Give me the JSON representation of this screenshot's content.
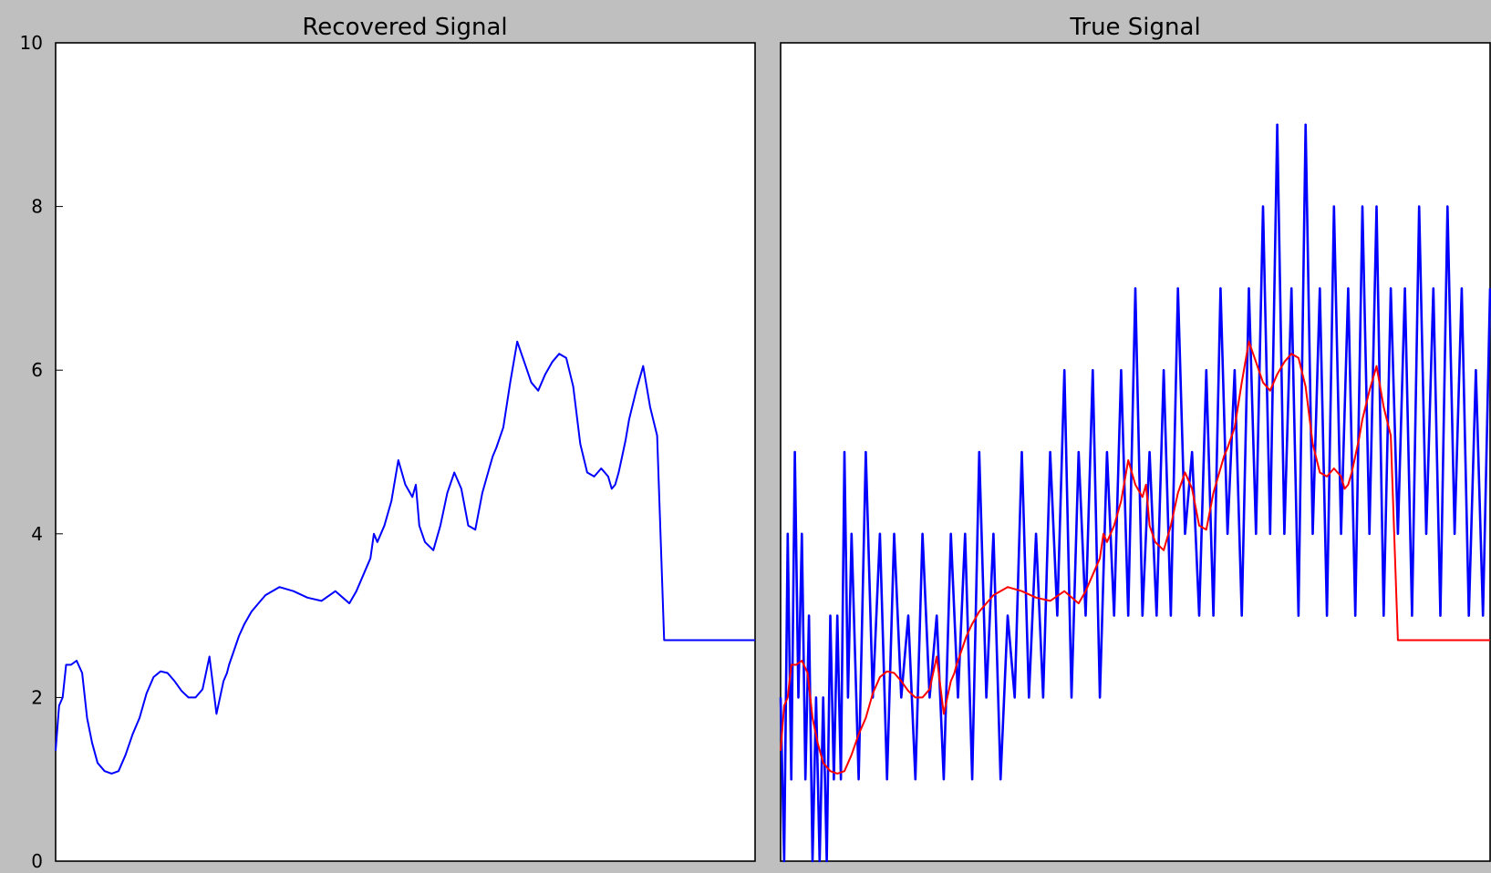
{
  "chart_data": [
    {
      "type": "line",
      "title": "Recovered Signal",
      "ylim": [
        0,
        10
      ],
      "yticks": [
        "0",
        "2",
        "4",
        "6",
        "8",
        "10"
      ],
      "xlim": [
        0,
        1000
      ],
      "xticks": [],
      "grid": false,
      "series": [
        {
          "color": "#0000ff",
          "x": [
            0,
            5,
            10,
            15,
            22,
            30,
            38,
            45,
            52,
            60,
            70,
            80,
            90,
            100,
            110,
            120,
            130,
            140,
            150,
            160,
            170,
            180,
            190,
            200,
            210,
            220,
            230,
            240,
            245,
            248,
            252,
            256,
            262,
            270,
            280,
            290,
            300,
            320,
            340,
            360,
            380,
            400,
            420,
            430,
            440,
            450,
            455,
            460,
            470,
            480,
            490,
            500,
            510,
            515,
            520,
            528,
            540,
            550,
            560,
            570,
            580,
            590,
            600,
            610,
            620,
            625,
            630,
            640,
            650,
            660,
            670,
            680,
            690,
            700,
            710,
            720,
            730,
            740,
            750,
            760,
            770,
            780,
            790,
            795,
            800,
            805,
            810,
            815,
            820,
            830,
            840,
            850,
            860,
            870,
            880,
            890,
            900,
            905,
            910,
            920,
            930,
            940,
            950,
            960,
            970,
            980,
            990,
            1000
          ],
          "y": [
            1.35,
            1.9,
            2.0,
            2.4,
            2.4,
            2.45,
            2.3,
            1.75,
            1.45,
            1.2,
            1.1,
            1.07,
            1.1,
            1.3,
            1.55,
            1.75,
            2.05,
            2.25,
            2.32,
            2.3,
            2.2,
            2.08,
            2.0,
            2.0,
            2.1,
            2.5,
            1.8,
            2.2,
            2.3,
            2.4,
            2.5,
            2.6,
            2.75,
            2.9,
            3.05,
            3.15,
            3.25,
            3.35,
            3.3,
            3.22,
            3.18,
            3.3,
            3.15,
            3.3,
            3.5,
            3.7,
            4.0,
            3.9,
            4.1,
            4.4,
            4.9,
            4.6,
            4.45,
            4.6,
            4.1,
            3.9,
            3.8,
            4.1,
            4.5,
            4.75,
            4.55,
            4.1,
            4.05,
            4.5,
            4.8,
            4.95,
            5.05,
            5.3,
            5.85,
            6.35,
            6.1,
            5.85,
            5.75,
            5.95,
            6.1,
            6.2,
            6.15,
            5.8,
            5.1,
            4.75,
            4.7,
            4.8,
            4.7,
            4.55,
            4.6,
            4.75,
            4.95,
            5.15,
            5.4,
            5.75,
            6.05,
            5.55,
            5.2,
            2.7,
            2.7,
            2.7,
            2.7,
            2.7,
            2.7,
            2.7,
            2.7,
            2.7,
            2.7,
            2.7,
            2.7,
            2.7,
            2.7,
            2.7
          ]
        }
      ]
    },
    {
      "type": "line",
      "title": "True Signal",
      "ylim": [
        0,
        10
      ],
      "yticks": [],
      "xlim": [
        0,
        1000
      ],
      "xticks": [],
      "grid": false,
      "series": [
        {
          "color": "#0000ff",
          "x": [
            0,
            5,
            10,
            15,
            20,
            25,
            30,
            35,
            40,
            45,
            50,
            55,
            60,
            65,
            70,
            75,
            80,
            85,
            90,
            95,
            100,
            110,
            120,
            130,
            140,
            150,
            160,
            170,
            180,
            190,
            200,
            210,
            220,
            230,
            240,
            250,
            260,
            270,
            280,
            290,
            300,
            310,
            320,
            330,
            340,
            350,
            360,
            370,
            380,
            390,
            400,
            410,
            420,
            430,
            440,
            450,
            460,
            470,
            480,
            490,
            500,
            510,
            520,
            530,
            540,
            550,
            560,
            570,
            580,
            590,
            600,
            610,
            620,
            630,
            640,
            650,
            660,
            670,
            680,
            690,
            700,
            710,
            720,
            730,
            740,
            750,
            760,
            770,
            780,
            790,
            800,
            810,
            820,
            830,
            840,
            850,
            860,
            870,
            880,
            890,
            900,
            910,
            920,
            930,
            940,
            950,
            960,
            970,
            980,
            990,
            1000
          ],
          "y": [
            2,
            0,
            4,
            1,
            5,
            2,
            4,
            1,
            3,
            0,
            2,
            0,
            2,
            0,
            3,
            1,
            3,
            1,
            5,
            2,
            4,
            1,
            5,
            2,
            4,
            1,
            4,
            2,
            3,
            1,
            4,
            2,
            3,
            1,
            4,
            2,
            4,
            1,
            5,
            2,
            4,
            1,
            3,
            2,
            5,
            2,
            4,
            2,
            5,
            3,
            6,
            2,
            5,
            3,
            6,
            2,
            5,
            3,
            6,
            3,
            7,
            3,
            5,
            3,
            6,
            3,
            7,
            4,
            5,
            3,
            6,
            3,
            7,
            4,
            6,
            3,
            7,
            4,
            8,
            4,
            9,
            4,
            7,
            3,
            9,
            4,
            7,
            3,
            8,
            4,
            7,
            3,
            8,
            4,
            8,
            3,
            7,
            4,
            7,
            3,
            8,
            4,
            7,
            3,
            8,
            4,
            7,
            3,
            6,
            3,
            7
          ]
        },
        {
          "color": "#ff0000",
          "x": [
            0,
            5,
            10,
            15,
            22,
            30,
            38,
            45,
            52,
            60,
            70,
            80,
            90,
            100,
            110,
            120,
            130,
            140,
            150,
            160,
            170,
            180,
            190,
            200,
            210,
            220,
            230,
            240,
            245,
            248,
            252,
            256,
            262,
            270,
            280,
            290,
            300,
            320,
            340,
            360,
            380,
            400,
            420,
            430,
            440,
            450,
            455,
            460,
            470,
            480,
            490,
            500,
            510,
            515,
            520,
            528,
            540,
            550,
            560,
            570,
            580,
            590,
            600,
            610,
            620,
            625,
            630,
            640,
            650,
            660,
            670,
            680,
            690,
            700,
            710,
            720,
            730,
            740,
            750,
            760,
            770,
            780,
            790,
            795,
            800,
            805,
            810,
            815,
            820,
            830,
            840,
            850,
            860,
            870,
            880,
            890,
            900,
            905,
            910,
            920,
            930,
            940,
            950,
            960,
            970,
            980,
            990,
            1000
          ],
          "y": [
            1.35,
            1.9,
            2.0,
            2.4,
            2.4,
            2.45,
            2.3,
            1.75,
            1.45,
            1.2,
            1.1,
            1.07,
            1.1,
            1.3,
            1.55,
            1.75,
            2.05,
            2.25,
            2.32,
            2.3,
            2.2,
            2.08,
            2.0,
            2.0,
            2.1,
            2.5,
            1.8,
            2.2,
            2.3,
            2.4,
            2.5,
            2.6,
            2.75,
            2.9,
            3.05,
            3.15,
            3.25,
            3.35,
            3.3,
            3.22,
            3.18,
            3.3,
            3.15,
            3.3,
            3.5,
            3.7,
            4.0,
            3.9,
            4.1,
            4.4,
            4.9,
            4.6,
            4.45,
            4.6,
            4.1,
            3.9,
            3.8,
            4.1,
            4.5,
            4.75,
            4.55,
            4.1,
            4.05,
            4.5,
            4.8,
            4.95,
            5.05,
            5.3,
            5.85,
            6.35,
            6.1,
            5.85,
            5.75,
            5.95,
            6.1,
            6.2,
            6.15,
            5.8,
            5.1,
            4.75,
            4.7,
            4.8,
            4.7,
            4.55,
            4.6,
            4.75,
            4.95,
            5.15,
            5.4,
            5.75,
            6.05,
            5.55,
            5.2,
            2.7,
            2.7,
            2.7,
            2.7,
            2.7,
            2.7,
            2.7,
            2.7,
            2.7,
            2.7,
            2.7,
            2.7,
            2.7,
            2.7,
            2.7
          ]
        }
      ]
    }
  ],
  "colors": {
    "figure_background": "#bfbfbf",
    "axes_background": "#ffffff",
    "recovered_line": "#0000ff",
    "true_signal": "#0000ff",
    "overlay": "#ff0000"
  }
}
